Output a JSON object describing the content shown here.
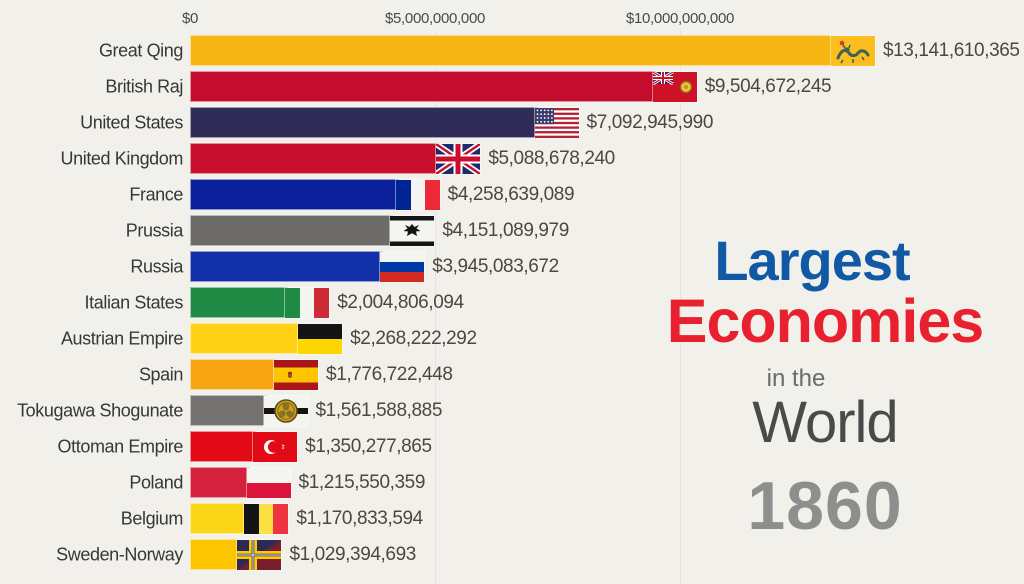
{
  "title": {
    "largest": "Largest",
    "economies": "Economies",
    "in_the": "in the",
    "world": "World",
    "year": "1860",
    "largest_color": "#1158A5",
    "economies_color": "#E8202F",
    "in_the_color": "#6A6A6A",
    "world_color": "#4A4A4A",
    "year_color": "#8E8E8E"
  },
  "chart_data": {
    "type": "bar",
    "orientation": "horizontal",
    "title": "Largest Economies in the World",
    "year": "1860",
    "unit": "USD (GDP)",
    "x_ticks": [
      "$0",
      "$5,000,000,000",
      "$10,000,000,000"
    ],
    "x_tick_values": [
      0,
      5000000000,
      10000000000
    ],
    "x_range": [
      0,
      17000000000
    ],
    "grid": true,
    "legend": false,
    "rows": [
      {
        "label": "Great Qing",
        "value": 13141610365,
        "value_label": "$13,141,610,365",
        "color": "#F7B613",
        "flag": "qing"
      },
      {
        "label": "British Raj",
        "value": 9504672245,
        "value_label": "$9,504,672,245",
        "color": "#C40D2E",
        "flag": "british-raj"
      },
      {
        "label": "United States",
        "value": 7092945990,
        "value_label": "$7,092,945,990",
        "color": "#312B57",
        "flag": "usa"
      },
      {
        "label": "United Kingdom",
        "value": 5088678240,
        "value_label": "$5,088,678,240",
        "color": "#C8102E",
        "flag": "uk"
      },
      {
        "label": "France",
        "value": 4258639089,
        "value_label": "$4,258,639,089",
        "color": "#0B1F9B",
        "flag": "france"
      },
      {
        "label": "Prussia",
        "value": 4151089979,
        "value_label": "$4,151,089,979",
        "color": "#6D6A6A",
        "flag": "prussia"
      },
      {
        "label": "Russia",
        "value": 3945083672,
        "value_label": "$3,945,083,672",
        "color": "#1230A8",
        "flag": "russia"
      },
      {
        "label": "Italian States",
        "value": 2004806094,
        "value_label": "$2,004,806,094",
        "color": "#1F8A44",
        "flag": "italy"
      },
      {
        "label": "Austrian Empire",
        "value": 2268222292,
        "value_label": "$2,268,222,292",
        "color": "#FFD217",
        "flag": "austria"
      },
      {
        "label": "Spain",
        "value": 1776722448,
        "value_label": "$1,776,722,448",
        "color": "#F7A512",
        "flag": "spain"
      },
      {
        "label": "Tokugawa Shogunate",
        "value": 1561588885,
        "value_label": "$1,561,588,885",
        "color": "#757170",
        "flag": "tokugawa"
      },
      {
        "label": "Ottoman Empire",
        "value": 1350277865,
        "value_label": "$1,350,277,865",
        "color": "#E30A17",
        "flag": "ottoman"
      },
      {
        "label": "Poland",
        "value": 1215550359,
        "value_label": "$1,215,550,359",
        "color": "#D4213D",
        "flag": "poland"
      },
      {
        "label": "Belgium",
        "value": 1170833594,
        "value_label": "$1,170,833,594",
        "color": "#FBD616",
        "flag": "belgium"
      },
      {
        "label": "Sweden-Norway",
        "value": 1029394693,
        "value_label": "$1,029,394,693",
        "color": "#FDC500",
        "flag": "sweden-norway"
      }
    ]
  }
}
